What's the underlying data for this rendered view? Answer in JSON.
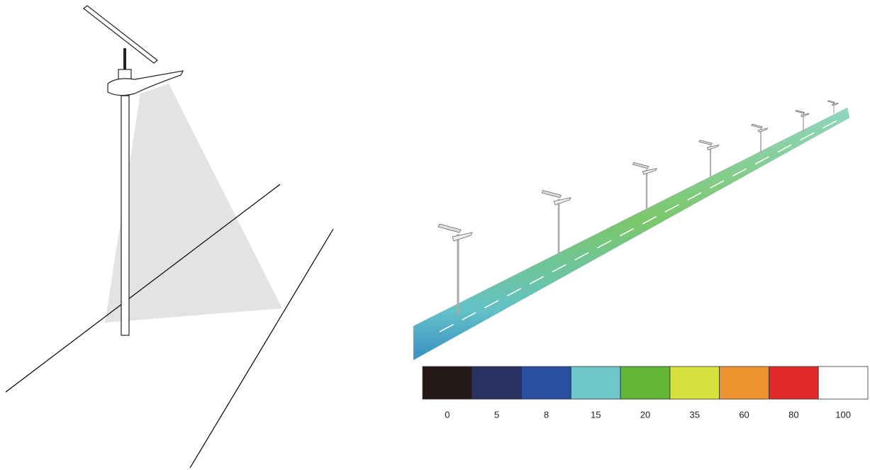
{
  "legend": {
    "items": [
      {
        "label": "0",
        "color": "#231815"
      },
      {
        "label": "5",
        "color": "#2b3263"
      },
      {
        "label": "8",
        "color": "#2a4fa0"
      },
      {
        "label": "15",
        "color": "#6fc6c8"
      },
      {
        "label": "20",
        "color": "#62b637"
      },
      {
        "label": "35",
        "color": "#d7e03c"
      },
      {
        "label": "60",
        "color": "#ec922f"
      },
      {
        "label": "80",
        "color": "#e2292a"
      },
      {
        "label": "100",
        "color": "#ffffff"
      }
    ]
  }
}
